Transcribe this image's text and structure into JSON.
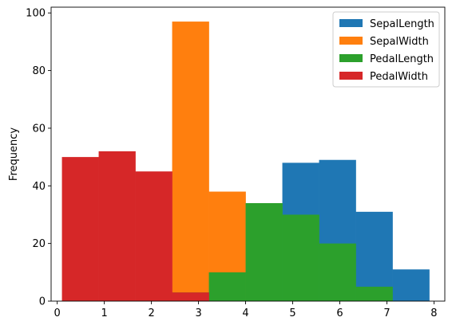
{
  "chart_data": {
    "type": "bar",
    "subtype": "overlapping-histogram",
    "title": "",
    "xlabel": "",
    "ylabel": "Frequency",
    "xlim": [
      -0.13,
      8.23
    ],
    "ylim": [
      0,
      102
    ],
    "xticks": [
      0,
      1,
      2,
      3,
      4,
      5,
      6,
      7,
      8
    ],
    "yticks": [
      0,
      20,
      40,
      60,
      80,
      100
    ],
    "bin_edges": [
      0.1,
      0.88,
      1.66,
      2.44,
      3.22,
      4.0,
      4.78,
      5.56,
      6.34,
      7.12,
      7.9
    ],
    "grid": false,
    "legend_position": "top-right",
    "series": [
      {
        "name": "SepalLength",
        "color": "#1f77b4",
        "values": [
          0,
          0,
          0,
          0,
          0,
          10,
          48,
          49,
          31,
          11
        ]
      },
      {
        "name": "SepalWidth",
        "color": "#ff7f0e",
        "values": [
          0,
          0,
          0,
          97,
          38,
          0,
          0,
          0,
          0,
          0
        ]
      },
      {
        "name": "PedalLength",
        "color": "#2ca02c",
        "values": [
          0,
          0,
          0,
          3,
          10,
          34,
          30,
          20,
          5,
          0
        ]
      },
      {
        "name": "PedalWidth",
        "color": "#d62728",
        "values": [
          50,
          52,
          45,
          3,
          0,
          0,
          0,
          0,
          0,
          0
        ]
      }
    ]
  }
}
